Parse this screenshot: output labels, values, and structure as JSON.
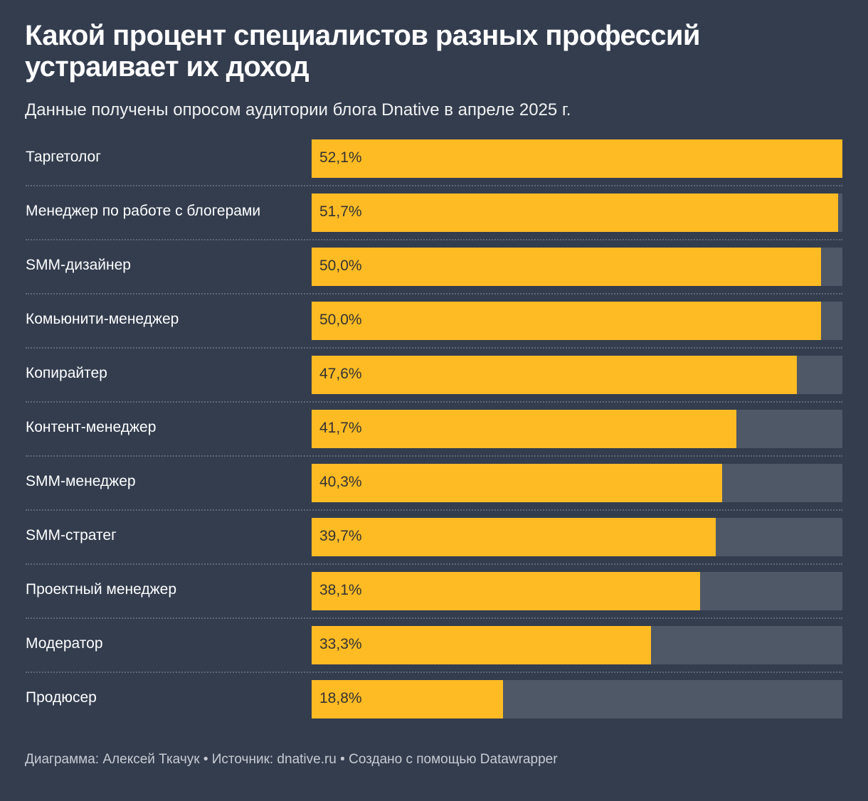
{
  "title": "Какой процент специалистов разных профессий устраивает их доход",
  "subtitle": "Данные получены опросом аудитории блога Dnative в апреле 2025 г.",
  "footer": {
    "author": "Диаграмма: Алексей Ткачук",
    "source": "Источник: dnative.ru",
    "tool": "Создано с помощью Datawrapper",
    "separator": " • "
  },
  "colors": {
    "background": "#333d4e",
    "bar": "#ffbb24",
    "track": "#4f5867"
  },
  "chart_data": {
    "type": "bar",
    "orientation": "horizontal",
    "title": "Какой процент специалистов разных профессий устраивает их доход",
    "subtitle": "Данные получены опросом аудитории блога Dnative в апреле 2025 г.",
    "categories": [
      "Таргетолог",
      "Менеджер по работе с блогерами",
      "SMM-дизайнер",
      "Комьюнити-менеджер",
      "Копирайтер",
      "Контент-менеджер",
      "SMM-менеджер",
      "SMM-стратег",
      "Проектный менеджер",
      "Модератор",
      "Продюсер"
    ],
    "values": [
      52.1,
      51.7,
      50.0,
      50.0,
      47.6,
      41.7,
      40.3,
      39.7,
      38.1,
      33.3,
      18.8
    ],
    "value_labels": [
      "52,1%",
      "51,7%",
      "50,0%",
      "50,0%",
      "47,6%",
      "41,7%",
      "40,3%",
      "39,7%",
      "38,1%",
      "33,3%",
      "18,8%"
    ],
    "unit": "%",
    "xlim": [
      0,
      52.1
    ],
    "grid": false,
    "legend": "none"
  }
}
